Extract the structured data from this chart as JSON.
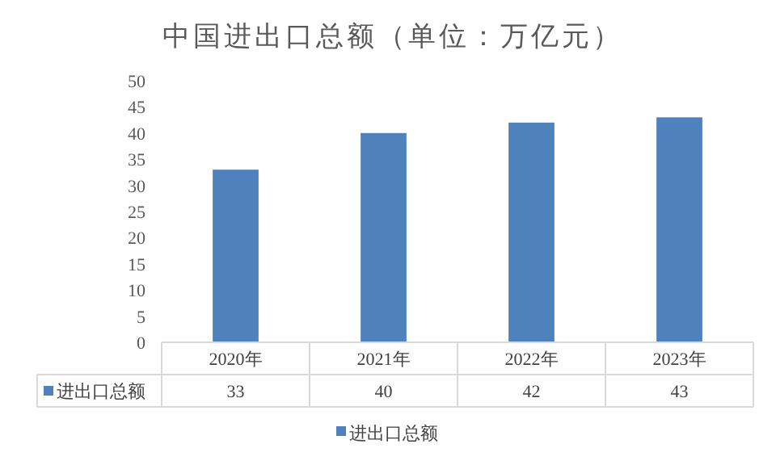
{
  "chart_data": {
    "type": "bar",
    "title": "中国进出口总额（单位：万亿元）",
    "categories": [
      "2020年",
      "2021年",
      "2022年",
      "2023年"
    ],
    "series": [
      {
        "name": "进出口总额",
        "color": "#4f81bd",
        "values": [
          33,
          40,
          42,
          43
        ]
      }
    ],
    "ylim": [
      0,
      50
    ],
    "yticks": [
      0,
      5,
      10,
      15,
      20,
      25,
      30,
      35,
      40,
      45,
      50
    ],
    "grid": false,
    "legend": "bottom",
    "data_labels": true
  }
}
